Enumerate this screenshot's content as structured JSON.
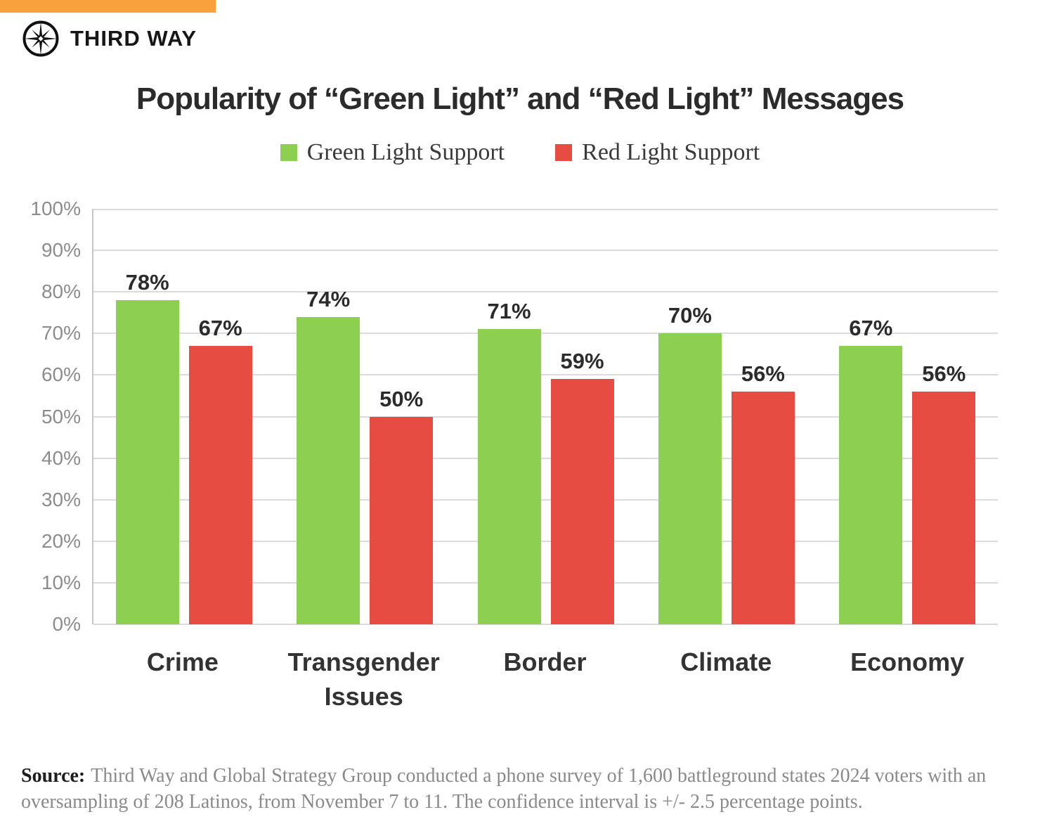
{
  "brand": {
    "name": "THIRD WAY",
    "accent_color": "#F9A13C",
    "logo": "compass-star-icon"
  },
  "header": {
    "title": "Popularity of “Green Light” and “Red Light” Messages"
  },
  "chart_data": {
    "type": "bar",
    "title": "Popularity of “Green Light” and “Red Light” Messages",
    "categories": [
      "Crime",
      "Transgender Issues",
      "Border",
      "Climate",
      "Economy"
    ],
    "series": [
      {
        "name": "Green Light Support",
        "color": "#8DCF51",
        "values": [
          78,
          74,
          71,
          70,
          67
        ]
      },
      {
        "name": "Red Light Support",
        "color": "#E74C43",
        "values": [
          67,
          50,
          59,
          56,
          56
        ]
      }
    ],
    "xlabel": "",
    "ylabel": "",
    "ylim": [
      0,
      100
    ],
    "ytick_step": 10,
    "ytick_suffix": "%",
    "grid": true,
    "legend_position": "top",
    "value_label_format": "{v}%",
    "style": {
      "gridline_color": "#DBDBDB",
      "axis_line_color": "#C6C6C6",
      "tick_label_color": "#8C8C8C",
      "value_label_color": "#2B2B2B",
      "category_label_color": "#333333"
    }
  },
  "source": {
    "label": "Source:",
    "text": "Third Way and Global Strategy Group conducted a phone survey of 1,600 battleground states 2024 voters with an oversampling of 208 Latinos, from November 7 to 11. The confidence interval is +/- 2.5 percentage points."
  }
}
